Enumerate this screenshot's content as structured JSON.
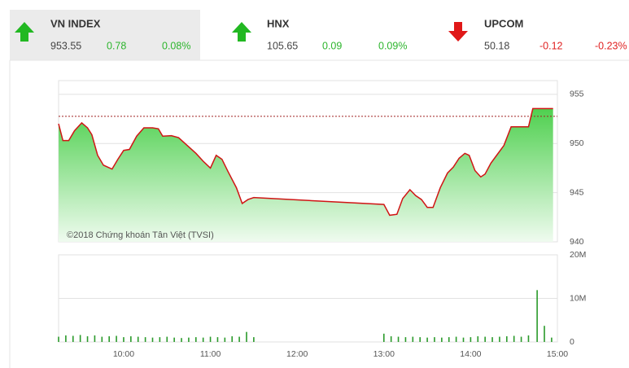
{
  "indices": [
    {
      "name": "VN INDEX",
      "value": "953.55",
      "change": "0.78",
      "percent": "0.08%"
    },
    {
      "name": "HNX",
      "value": "105.65",
      "change": "0.09",
      "percent": "0.09%"
    },
    {
      "name": "UPCOM",
      "value": "50.18",
      "change": "-0.12",
      "percent": "-0.23%"
    }
  ],
  "chart_data": [
    {
      "type": "area",
      "annotation": "©2018 Chứng khoán Tân Việt (TVSI)",
      "reference": 952.77,
      "x": [
        "09:15",
        "09:18",
        "09:22",
        "09:26",
        "09:31",
        "09:35",
        "09:38",
        "09:42",
        "09:46",
        "09:52",
        "09:56",
        "10:00",
        "10:04",
        "10:09",
        "10:14",
        "10:20",
        "10:24",
        "10:27",
        "10:33",
        "10:38",
        "10:44",
        "10:50",
        "10:55",
        "11:00",
        "11:04",
        "11:08",
        "11:12",
        "11:18",
        "11:22",
        "11:26",
        "11:30",
        "13:00",
        "13:04",
        "13:09",
        "13:13",
        "13:18",
        "13:22",
        "13:26",
        "13:30",
        "13:34",
        "13:39",
        "13:44",
        "13:48",
        "13:52",
        "13:56",
        "13:59",
        "14:03",
        "14:07",
        "14:10",
        "14:14",
        "14:18",
        "14:23",
        "14:28",
        "14:36",
        "14:40",
        "14:43",
        "14:57"
      ],
      "values": [
        952.0,
        950.3,
        950.3,
        951.3,
        952.1,
        951.6,
        950.9,
        948.8,
        947.8,
        947.4,
        948.4,
        949.3,
        949.4,
        950.75,
        951.6,
        951.6,
        951.5,
        950.75,
        950.8,
        950.6,
        949.8,
        949.0,
        948.2,
        947.5,
        948.8,
        948.4,
        947.2,
        945.5,
        943.9,
        944.3,
        944.5,
        943.8,
        942.7,
        942.8,
        944.4,
        945.3,
        944.7,
        944.3,
        943.5,
        943.5,
        945.5,
        947.0,
        947.6,
        948.5,
        949.0,
        948.8,
        947.25,
        946.6,
        946.9,
        948.0,
        948.8,
        949.8,
        951.7,
        951.7,
        951.7,
        953.55,
        953.55
      ],
      "color": "#d01515",
      "xlim": [
        "09:15",
        "15:00"
      ],
      "ylim": [
        940,
        956.4
      ],
      "yticks": [
        940,
        945,
        950,
        955
      ],
      "grid": true
    },
    {
      "type": "bar",
      "x": [
        "09:15",
        "09:20",
        "09:25",
        "09:30",
        "09:35",
        "09:40",
        "09:45",
        "09:50",
        "09:55",
        "10:00",
        "10:05",
        "10:10",
        "10:15",
        "10:20",
        "10:25",
        "10:30",
        "10:35",
        "10:40",
        "10:45",
        "10:50",
        "10:55",
        "11:00",
        "11:05",
        "11:10",
        "11:15",
        "11:20",
        "11:25",
        "11:30",
        "13:00",
        "13:05",
        "13:10",
        "13:15",
        "13:20",
        "13:25",
        "13:30",
        "13:35",
        "13:40",
        "13:45",
        "13:50",
        "13:55",
        "14:00",
        "14:05",
        "14:10",
        "14:15",
        "14:20",
        "14:25",
        "14:30",
        "14:35",
        "14:40",
        "14:46",
        "14:51",
        "14:56"
      ],
      "values": [
        1200000,
        1500000,
        1400000,
        1600000,
        1300000,
        1500000,
        1200000,
        1300000,
        1400000,
        1100000,
        1300000,
        1200000,
        1100000,
        1000000,
        1100000,
        1200000,
        1000000,
        900000,
        1000000,
        1100000,
        1000000,
        1200000,
        1100000,
        1000000,
        1300000,
        1200000,
        2300000,
        1100000,
        1900000,
        1300000,
        1200000,
        1100000,
        1200000,
        1100000,
        1000000,
        1100000,
        1000000,
        1100000,
        1200000,
        1000000,
        1100000,
        1300000,
        1200000,
        1100000,
        1200000,
        1300000,
        1400000,
        1200000,
        1500000,
        11900000,
        3700000,
        1000000
      ],
      "color": "#2a9a2a",
      "xlim": [
        "09:15",
        "15:00"
      ],
      "ylim": [
        0,
        20000000
      ],
      "xticks": [
        "10:00",
        "11:00",
        "12:00",
        "13:00",
        "14:00",
        "15:00"
      ],
      "yticks": [
        0,
        {
          "value": 10000000,
          "label": "10M"
        },
        {
          "value": 20000000,
          "label": "20M"
        }
      ],
      "grid": true
    }
  ]
}
